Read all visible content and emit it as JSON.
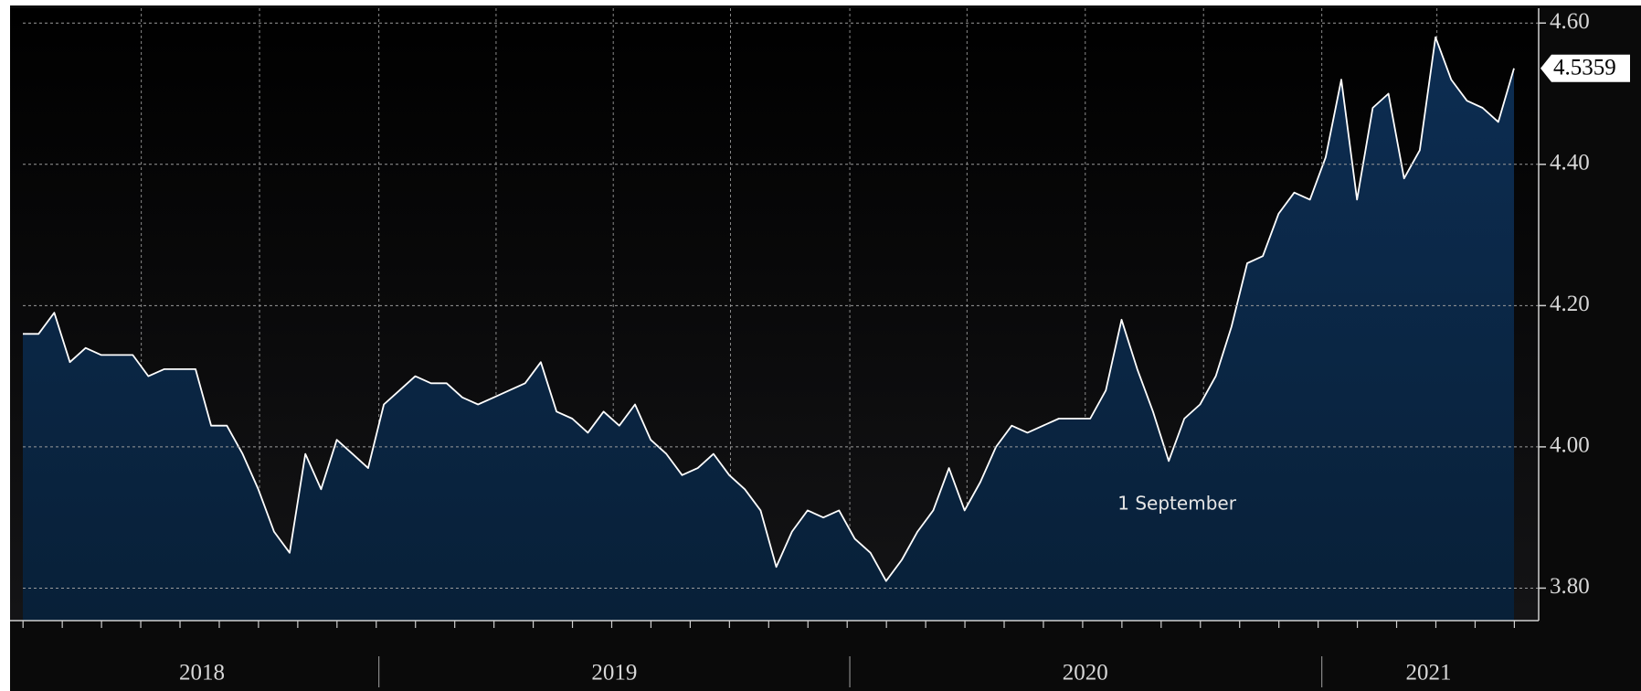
{
  "chart_data": {
    "type": "area",
    "values": [
      4.16,
      4.16,
      4.19,
      4.12,
      4.14,
      4.13,
      4.13,
      4.13,
      4.1,
      4.11,
      4.11,
      4.11,
      4.03,
      4.03,
      3.99,
      3.94,
      3.88,
      3.85,
      3.99,
      3.94,
      4.01,
      3.99,
      3.97,
      4.06,
      4.08,
      4.1,
      4.09,
      4.09,
      4.07,
      4.06,
      4.07,
      4.08,
      4.09,
      4.12,
      4.05,
      4.04,
      4.02,
      4.05,
      4.03,
      4.06,
      4.01,
      3.99,
      3.96,
      3.97,
      3.99,
      3.96,
      3.94,
      3.91,
      3.83,
      3.88,
      3.91,
      3.9,
      3.91,
      3.87,
      3.85,
      3.81,
      3.84,
      3.88,
      3.91,
      3.97,
      3.91,
      3.95,
      4.0,
      4.03,
      4.02,
      4.03,
      4.04,
      4.04,
      4.04,
      4.08,
      4.18,
      4.11,
      4.05,
      3.98,
      4.04,
      4.06,
      4.1,
      4.17,
      4.26,
      4.27,
      4.33,
      4.36,
      4.35,
      4.41,
      4.52,
      4.35,
      4.48,
      4.5,
      4.38,
      4.42,
      4.58,
      4.52,
      4.49,
      4.48,
      4.46,
      4.5359
    ],
    "color": "#ffffff",
    "fill_color": "#0b2748",
    "years": [
      "2018",
      "2019",
      "2020",
      "2021"
    ],
    "annotation": "1 September",
    "ylim": [
      3.754,
      4.621
    ],
    "yticks": [
      {
        "value": 3.8,
        "label": "3.80"
      },
      {
        "value": 4,
        "label": "4.00"
      },
      {
        "value": 4.2,
        "label": "4.20"
      },
      {
        "value": 4.4,
        "label": "4.40"
      },
      {
        "value": 4.6,
        "label": "4.60"
      }
    ],
    "grid": true
  }
}
